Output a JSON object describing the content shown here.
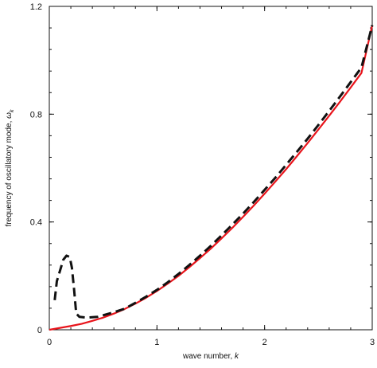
{
  "chart_data": {
    "type": "line",
    "xlabel": "wave number, k",
    "ylabel": "frequency of oscillatory mode, ω_k",
    "xlim": [
      0,
      3
    ],
    "ylim": [
      0,
      1.2
    ],
    "x_ticks": [
      "0",
      "1",
      "2",
      "3"
    ],
    "y_ticks": [
      "0",
      "0.4",
      "0.8",
      "1.2"
    ],
    "grid": false,
    "legend": "none",
    "series": [
      {
        "style": "solid",
        "color": "#e8141b",
        "points": [
          [
            0.0,
            0.0
          ],
          [
            0.1,
            0.007
          ],
          [
            0.2,
            0.014
          ],
          [
            0.3,
            0.022
          ],
          [
            0.4,
            0.033
          ],
          [
            0.5,
            0.045
          ],
          [
            0.6,
            0.06
          ],
          [
            0.7,
            0.077
          ],
          [
            0.8,
            0.097
          ],
          [
            0.9,
            0.119
          ],
          [
            1.0,
            0.144
          ],
          [
            1.1,
            0.171
          ],
          [
            1.2,
            0.2
          ],
          [
            1.3,
            0.232
          ],
          [
            1.4,
            0.266
          ],
          [
            1.5,
            0.301
          ],
          [
            1.6,
            0.339
          ],
          [
            1.7,
            0.378
          ],
          [
            1.8,
            0.419
          ],
          [
            1.9,
            0.461
          ],
          [
            2.0,
            0.505
          ],
          [
            2.1,
            0.55
          ],
          [
            2.2,
            0.596
          ],
          [
            2.3,
            0.644
          ],
          [
            2.4,
            0.693
          ],
          [
            2.5,
            0.743
          ],
          [
            2.6,
            0.794
          ],
          [
            2.7,
            0.846
          ],
          [
            2.8,
            0.899
          ],
          [
            2.9,
            0.953
          ],
          [
            3.0,
            1.13
          ]
        ]
      },
      {
        "style": "dashed",
        "color": "#111111",
        "points": [
          [
            0.05,
            0.11
          ],
          [
            0.07,
            0.18
          ],
          [
            0.1,
            0.22
          ],
          [
            0.13,
            0.26
          ],
          [
            0.16,
            0.275
          ],
          [
            0.19,
            0.27
          ],
          [
            0.21,
            0.23
          ],
          [
            0.23,
            0.15
          ],
          [
            0.25,
            0.06
          ],
          [
            0.28,
            0.048
          ],
          [
            0.35,
            0.045
          ],
          [
            0.45,
            0.048
          ],
          [
            0.6,
            0.065
          ],
          [
            0.7,
            0.078
          ],
          [
            0.8,
            0.1
          ],
          [
            0.9,
            0.123
          ],
          [
            1.0,
            0.148
          ],
          [
            1.1,
            0.176
          ],
          [
            1.2,
            0.207
          ],
          [
            1.3,
            0.24
          ],
          [
            1.4,
            0.275
          ],
          [
            1.5,
            0.311
          ],
          [
            1.6,
            0.35
          ],
          [
            1.7,
            0.39
          ],
          [
            1.8,
            0.431
          ],
          [
            1.9,
            0.474
          ],
          [
            2.0,
            0.519
          ],
          [
            2.1,
            0.564
          ],
          [
            2.2,
            0.612
          ],
          [
            2.3,
            0.66
          ],
          [
            2.4,
            0.709
          ],
          [
            2.5,
            0.76
          ],
          [
            2.6,
            0.812
          ],
          [
            2.7,
            0.865
          ],
          [
            2.8,
            0.919
          ],
          [
            2.9,
            0.973
          ],
          [
            3.0,
            1.13
          ]
        ]
      }
    ]
  }
}
